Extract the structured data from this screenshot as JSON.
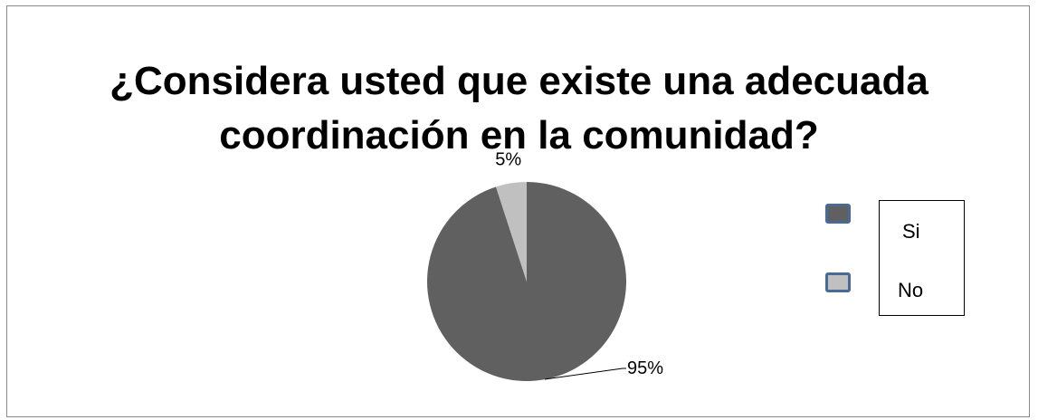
{
  "chart_data": {
    "type": "pie",
    "title": "¿Considera usted que existe una adecuada coordinación en la comunidad?",
    "title_lines": [
      "¿Considera usted que existe una adecuada",
      "coordinación en la comunidad?"
    ],
    "categories": [
      "Si",
      "No"
    ],
    "values": [
      95,
      5
    ],
    "data_labels": [
      "95%",
      "5%"
    ],
    "colors": [
      "#606060",
      "#c0c0c0"
    ],
    "legend_position": "right"
  }
}
